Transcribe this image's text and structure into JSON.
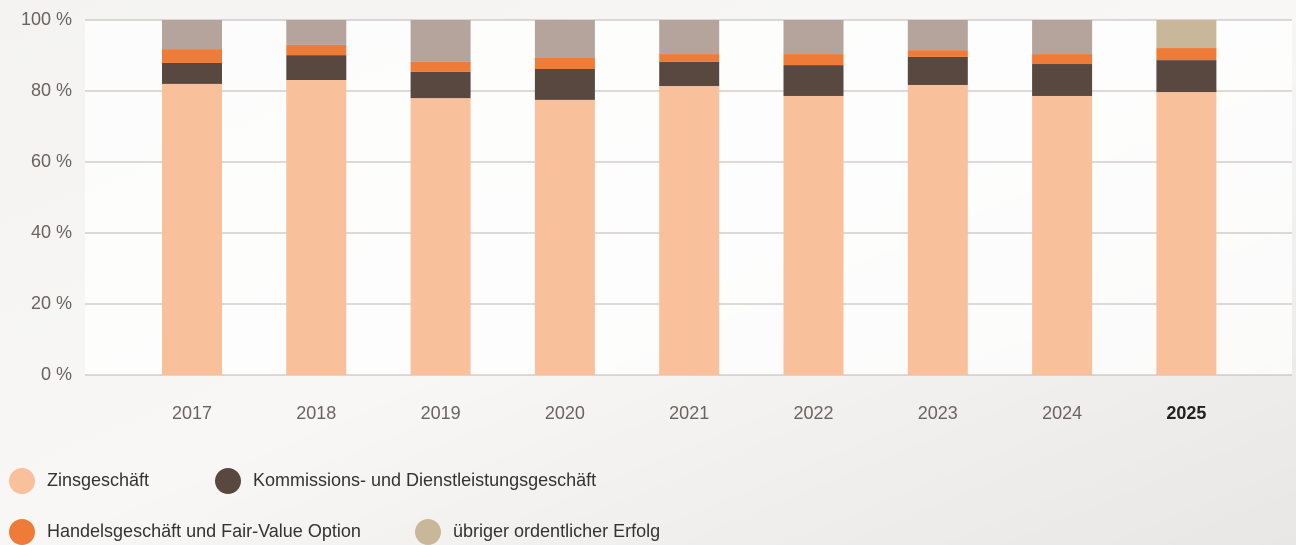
{
  "chart_data": {
    "type": "stacked_bar",
    "categories": [
      "2017",
      "2018",
      "2019",
      "2020",
      "2021",
      "2022",
      "2023",
      "2024",
      "2025"
    ],
    "highlight": 8,
    "series": [
      {
        "name": "Zinsgeschäft",
        "color": "#f9c09c",
        "values": [
          82.0,
          83.1,
          78.0,
          77.5,
          81.4,
          78.6,
          81.7,
          78.6,
          79.7
        ]
      },
      {
        "name": "Kommissions- und Dienstleistungsgeschäft",
        "color": "#584840",
        "values": [
          5.9,
          7.0,
          7.4,
          8.7,
          6.8,
          8.7,
          7.9,
          9.0,
          9.0
        ]
      },
      {
        "name": "Handelsgeschäft und Fair-Value Option",
        "color": "#ef7b38",
        "values": [
          3.9,
          2.9,
          2.8,
          3.1,
          2.2,
          3.1,
          1.9,
          2.8,
          3.4
        ]
      },
      {
        "name": "übriger ordentlicher Erfolg",
        "color": "#c8b899",
        "point_colors": [
          "#b4a49c",
          "#b4a49c",
          "#b4a49c",
          "#b4a49c",
          "#b4a49c",
          "#b4a49c",
          "#b4a49c",
          "#b4a49c",
          "#c8b899"
        ],
        "values": [
          8.2,
          7.0,
          11.8,
          10.7,
          9.6,
          9.6,
          8.5,
          9.6,
          7.9
        ]
      }
    ],
    "ylim": [
      0,
      100
    ],
    "yticks": [
      {
        "value": 0,
        "label": "0 %"
      },
      {
        "value": 20,
        "label": "20 %"
      },
      {
        "value": 40,
        "label": "40 %"
      },
      {
        "value": 60,
        "label": "60 %"
      },
      {
        "value": 80,
        "label": "80 %"
      },
      {
        "value": 100,
        "label": "100 %"
      }
    ],
    "grid": true
  }
}
